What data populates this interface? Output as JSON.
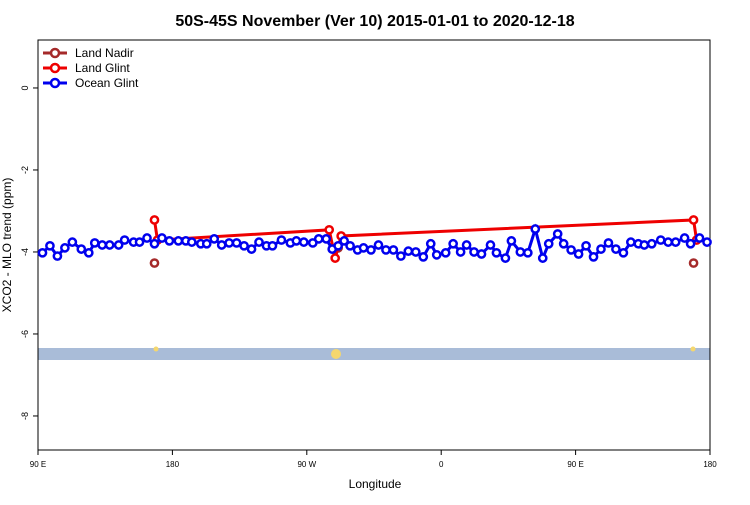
{
  "chart_data": {
    "type": "line",
    "title": "50S-45S November (Ver 10)   2015-01-01 to 2020-12-18",
    "xlabel": "Longitude",
    "ylabel": "XCO2 - MLO trend (ppm)",
    "xlim": [
      90,
      540
    ],
    "xticks": [
      {
        "value": 90,
        "label": "90 E"
      },
      {
        "value": 180,
        "label": "180"
      },
      {
        "value": 270,
        "label": "90 W"
      },
      {
        "value": 360,
        "label": "0"
      },
      {
        "value": 450,
        "label": "90 E"
      },
      {
        "value": 540,
        "label": "180"
      }
    ],
    "ylim": [
      -8.83,
      1.17
    ],
    "yticks": [
      0,
      -2,
      -4,
      -6,
      -8
    ],
    "legend": "top-left",
    "series": [
      {
        "name": "Land Nadir",
        "color": "#a52a2a",
        "x": [
          168,
          291,
          529
        ],
        "values": [
          -4.27,
          -3.9,
          -4.27
        ]
      },
      {
        "name": "Land Glint",
        "color": "#ee0000",
        "x": [
          168,
          170,
          285,
          289,
          293,
          529,
          531
        ],
        "values": [
          -3.22,
          -3.71,
          -3.46,
          -4.15,
          -3.61,
          -3.22,
          -3.71
        ]
      },
      {
        "name": "Ocean Glint",
        "color": "#0000ee",
        "x": [
          93,
          98,
          103,
          108,
          113,
          119,
          124,
          128,
          133,
          138,
          144,
          148,
          154,
          158,
          163,
          168,
          173,
          178,
          184,
          189,
          193,
          199,
          203,
          208,
          213,
          218,
          223,
          228,
          233,
          238,
          243,
          247,
          253,
          259,
          263,
          268,
          274,
          278,
          283,
          287,
          291,
          295,
          299,
          304,
          308,
          313,
          318,
          323,
          328,
          333,
          338,
          343,
          348,
          353,
          357,
          363,
          368,
          373,
          377,
          382,
          387,
          393,
          397,
          403,
          407,
          413,
          418,
          423,
          428,
          432,
          438,
          442,
          447,
          452,
          457,
          462,
          467,
          472,
          477,
          482,
          487,
          492,
          496,
          501,
          507,
          512,
          517,
          523,
          527,
          533,
          538
        ],
        "values": [
          -4.02,
          -3.85,
          -4.1,
          -3.9,
          -3.76,
          -3.93,
          -4.02,
          -3.78,
          -3.83,
          -3.83,
          -3.83,
          -3.71,
          -3.76,
          -3.76,
          -3.66,
          -3.8,
          -3.66,
          -3.73,
          -3.73,
          -3.73,
          -3.76,
          -3.8,
          -3.8,
          -3.68,
          -3.83,
          -3.78,
          -3.78,
          -3.85,
          -3.93,
          -3.76,
          -3.85,
          -3.85,
          -3.71,
          -3.78,
          -3.73,
          -3.76,
          -3.78,
          -3.68,
          -3.68,
          -3.93,
          -3.85,
          -3.73,
          -3.85,
          -3.95,
          -3.9,
          -3.95,
          -3.83,
          -3.95,
          -3.95,
          -4.1,
          -3.98,
          -4.0,
          -4.12,
          -3.8,
          -4.07,
          -4.02,
          -3.8,
          -4.0,
          -3.83,
          -4.0,
          -4.05,
          -3.83,
          -4.02,
          -4.15,
          -3.73,
          -4.0,
          -4.02,
          -3.44,
          -4.15,
          -3.8,
          -3.56,
          -3.8,
          -3.95,
          -4.05,
          -3.85,
          -4.12,
          -3.93,
          -3.78,
          -3.93,
          -4.02,
          -3.76,
          -3.8,
          -3.83,
          -3.8,
          -3.71,
          -3.76,
          -3.76,
          -3.66,
          -3.8,
          -3.66,
          -3.76
        ]
      }
    ]
  }
}
